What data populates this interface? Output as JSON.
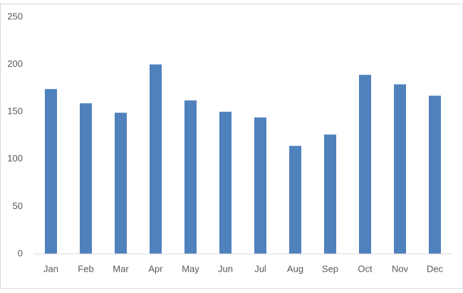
{
  "chart_data": {
    "type": "bar",
    "categories": [
      "Jan",
      "Feb",
      "Mar",
      "Apr",
      "May",
      "Jun",
      "Jul",
      "Aug",
      "Sep",
      "Oct",
      "Nov",
      "Dec"
    ],
    "values": [
      174,
      159,
      149,
      200,
      162,
      150,
      144,
      114,
      126,
      189,
      179,
      167
    ],
    "color": "#4f81bd",
    "ylim": [
      0,
      250
    ],
    "yticks": [
      0,
      50,
      100,
      150,
      200,
      250
    ],
    "grid": false
  }
}
